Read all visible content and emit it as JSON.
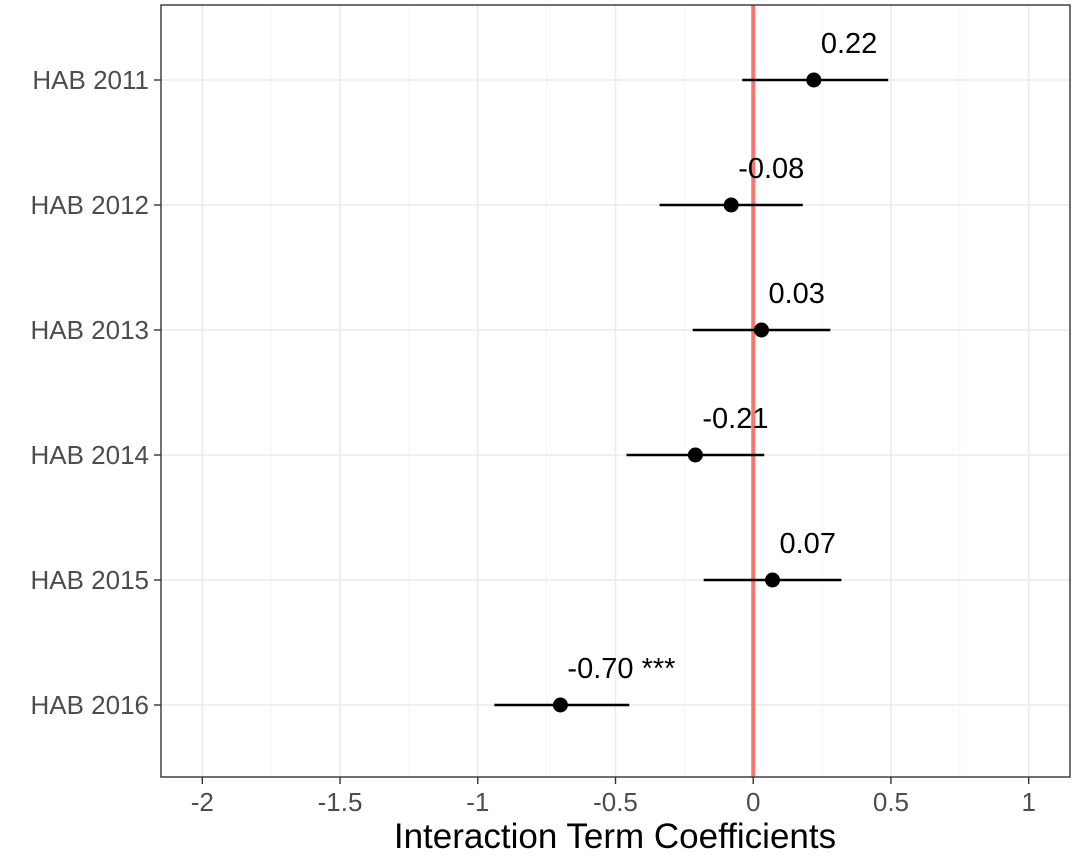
{
  "chart_data": {
    "type": "scatter",
    "subtype": "coefficient-plot",
    "title": "",
    "xlabel": "Interaction Term Coefficients",
    "ylabel": "",
    "xlim": [
      -2.15,
      1.15
    ],
    "x_ticks": [
      -2,
      -1.5,
      -1,
      -0.5,
      0,
      0.5,
      1
    ],
    "x_tick_labels": [
      "-2",
      "-1.5",
      "-1",
      "-0.5",
      "0",
      "0.5",
      "1"
    ],
    "grid": true,
    "legend": "none",
    "reference_line": {
      "x": 0,
      "color": "#f8766d"
    },
    "point_color": "#000000",
    "categories": [
      "HAB 2011",
      "HAB 2012",
      "HAB 2013",
      "HAB 2014",
      "HAB 2015",
      "HAB 2016"
    ],
    "values": [
      0.22,
      -0.08,
      0.03,
      -0.21,
      0.07,
      -0.7
    ],
    "ci_low": [
      -0.04,
      -0.34,
      -0.22,
      -0.46,
      -0.18,
      -0.94
    ],
    "ci_high": [
      0.49,
      0.18,
      0.28,
      0.04,
      0.32,
      -0.45
    ],
    "labels": [
      "0.22",
      "-0.08",
      "0.03",
      "-0.21",
      "0.07",
      "-0.70 ***"
    ]
  }
}
